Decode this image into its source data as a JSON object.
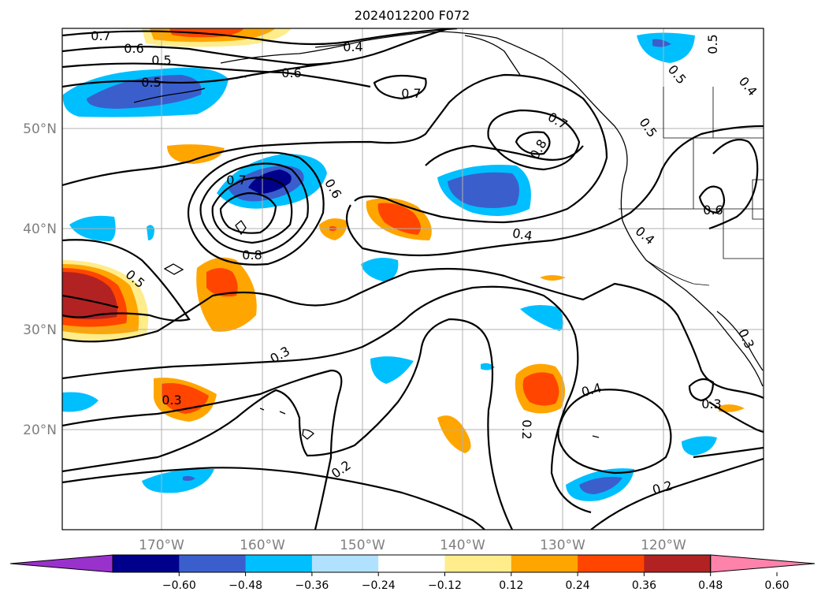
{
  "title": "2024012200 F072",
  "lat_labels": [
    "50°N",
    "40°N",
    "30°N",
    "20°N"
  ],
  "lon_labels": [
    "170°W",
    "160°W",
    "150°W",
    "140°W",
    "130°W",
    "120°W"
  ],
  "colorbar": {
    "colors": [
      "#9932cc",
      "#00008b",
      "#3a5fcd",
      "#00bfff",
      "#b0e2ff",
      "#ffffff",
      "#ffec8b",
      "#ffa500",
      "#ff4500",
      "#b22222",
      "#ff82ab"
    ],
    "ticks": [
      "−0.60",
      "−0.48",
      "−0.36",
      "−0.24",
      "−0.12",
      "0.12",
      "0.24",
      "0.36",
      "0.48",
      "0.60"
    ]
  },
  "contour_labels": [
    "0.7",
    "0.6",
    "0.5",
    "0.5",
    "0.4",
    "0.6",
    "0.7",
    "0.5",
    "0.4",
    "0.5",
    "0.7",
    "0.8",
    "0.7",
    "0.5",
    "0.6",
    "0.8",
    "0.4",
    "0.6",
    "0.4",
    "0.5",
    "0.3",
    "0.3",
    "0.2",
    "0.4",
    "0.2",
    "0.2",
    "0.3",
    "0.3"
  ]
}
